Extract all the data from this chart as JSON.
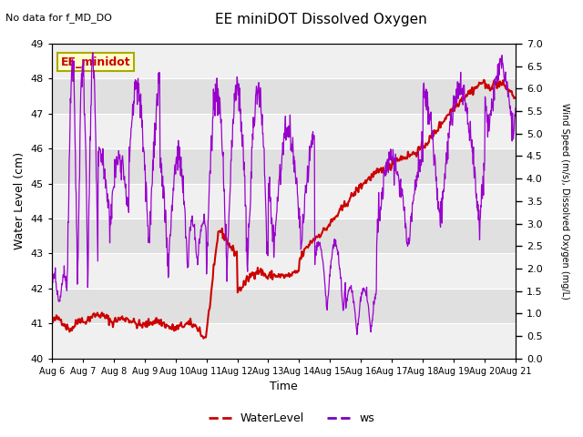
{
  "title": "EE miniDOT Dissolved Oxygen",
  "top_left_text": "No data for f_MD_DO",
  "legend_box_text": "EE_minidot",
  "xlabel": "Time",
  "ylabel_left": "Water Level (cm)",
  "ylabel_right": "Wind Speed (m/s), Dissolved Oxygen (mg/L)",
  "ylim_left": [
    40.0,
    49.0
  ],
  "ylim_right": [
    0.0,
    7.0
  ],
  "yticks_left": [
    40.0,
    41.0,
    42.0,
    43.0,
    44.0,
    45.0,
    46.0,
    47.0,
    48.0,
    49.0
  ],
  "yticks_right": [
    0.0,
    0.5,
    1.0,
    1.5,
    2.0,
    2.5,
    3.0,
    3.5,
    4.0,
    4.5,
    5.0,
    5.5,
    6.0,
    6.5,
    7.0
  ],
  "background_color": "#ffffff",
  "plot_bg_light": "#f0f0f0",
  "plot_bg_dark": "#e0e0e0",
  "grid_color": "#ffffff",
  "color_water": "#cc0000",
  "color_ws": "#9900cc",
  "legend_labels": [
    "WaterLevel",
    "ws"
  ],
  "legend_colors": [
    "#cc0000",
    "#7700bb"
  ],
  "figsize": [
    6.4,
    4.8
  ],
  "dpi": 100
}
